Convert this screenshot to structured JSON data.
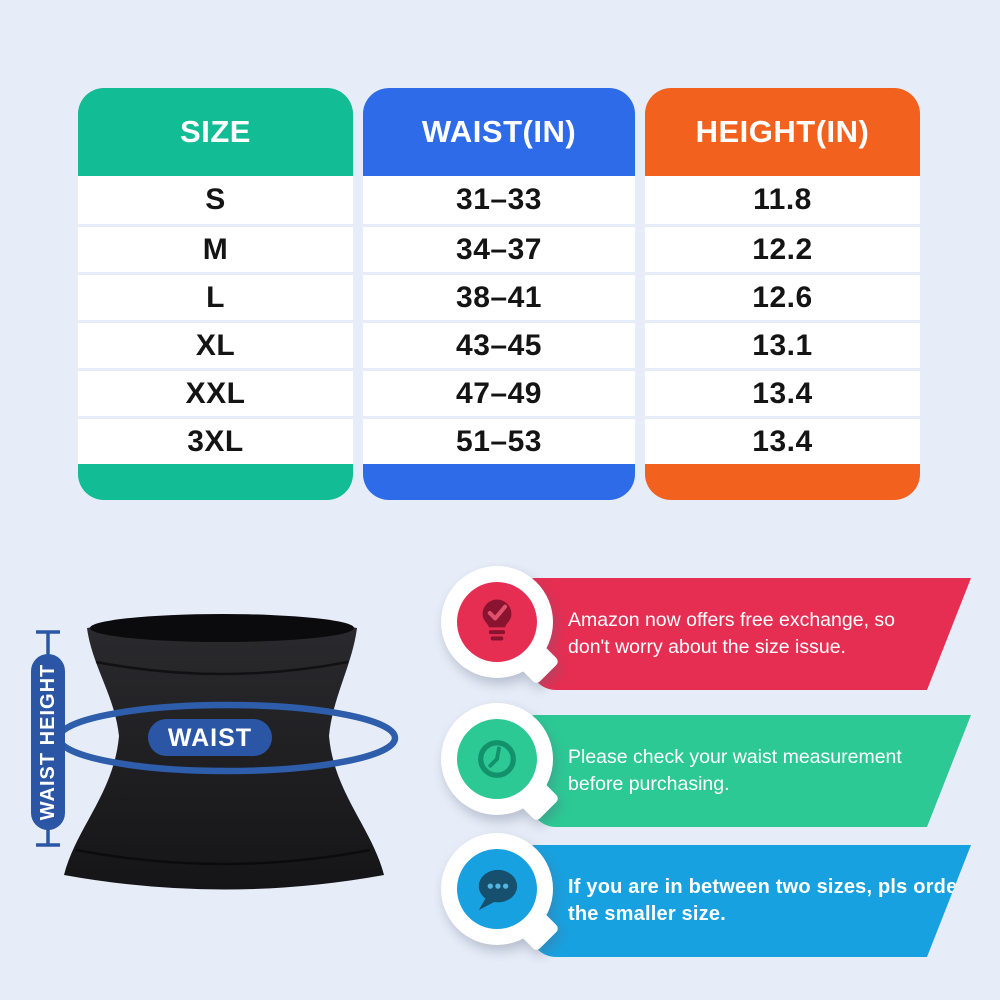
{
  "background_color": "#e7edf8",
  "chart_data": {
    "type": "table",
    "title": "",
    "columns": [
      "SIZE",
      "WAIST(IN)",
      "HEIGHT(IN)"
    ],
    "rows": [
      [
        "S",
        "31–33",
        "11.8"
      ],
      [
        "M",
        "34–37",
        "12.2"
      ],
      [
        "L",
        "38–41",
        "12.6"
      ],
      [
        "XL",
        "43–45",
        "13.1"
      ],
      [
        "XXL",
        "47–49",
        "13.4"
      ],
      [
        "3XL",
        "51–53",
        "13.4"
      ]
    ],
    "header_colors": [
      "#12bc94",
      "#2e6be8",
      "#f2611d"
    ]
  },
  "size_chart": {
    "columns": [
      {
        "header": "SIZE",
        "color": "#12bc94",
        "values": [
          "S",
          "M",
          "L",
          "XL",
          "XXL",
          "3XL"
        ]
      },
      {
        "header": "WAIST(IN)",
        "color": "#2e6be8",
        "values": [
          "31–33",
          "34–37",
          "38–41",
          "43–45",
          "47–49",
          "51–53"
        ]
      },
      {
        "header": "HEIGHT(IN)",
        "color": "#f2611d",
        "values": [
          "11.8",
          "12.2",
          "12.6",
          "13.1",
          "13.4",
          "13.4"
        ]
      }
    ]
  },
  "illustration": {
    "waist_label": "WAIST",
    "height_label": "WAIST HEIGHT",
    "label_pill_color": "#2b56a5",
    "measure_ring_color": "#2d5dab",
    "garment_color": "#1e1e21"
  },
  "callouts": [
    {
      "icon": "lightbulb-check-icon",
      "banner_color": "#e62e52",
      "icon_color": "#8a1430",
      "lines": [
        "Amazon now offers free exchange, so",
        "don't worry about the size issue."
      ]
    },
    {
      "icon": "clock-icon",
      "banner_color": "#2cc994",
      "icon_color": "#12916a",
      "lines": [
        "Please check your waist measurement",
        "before purchasing."
      ]
    },
    {
      "icon": "chat-dots-icon",
      "banner_color": "#18a1e0",
      "icon_color": "#16506e",
      "lines": [
        "If you are in between two sizes, pls order",
        "the smaller size."
      ]
    }
  ]
}
